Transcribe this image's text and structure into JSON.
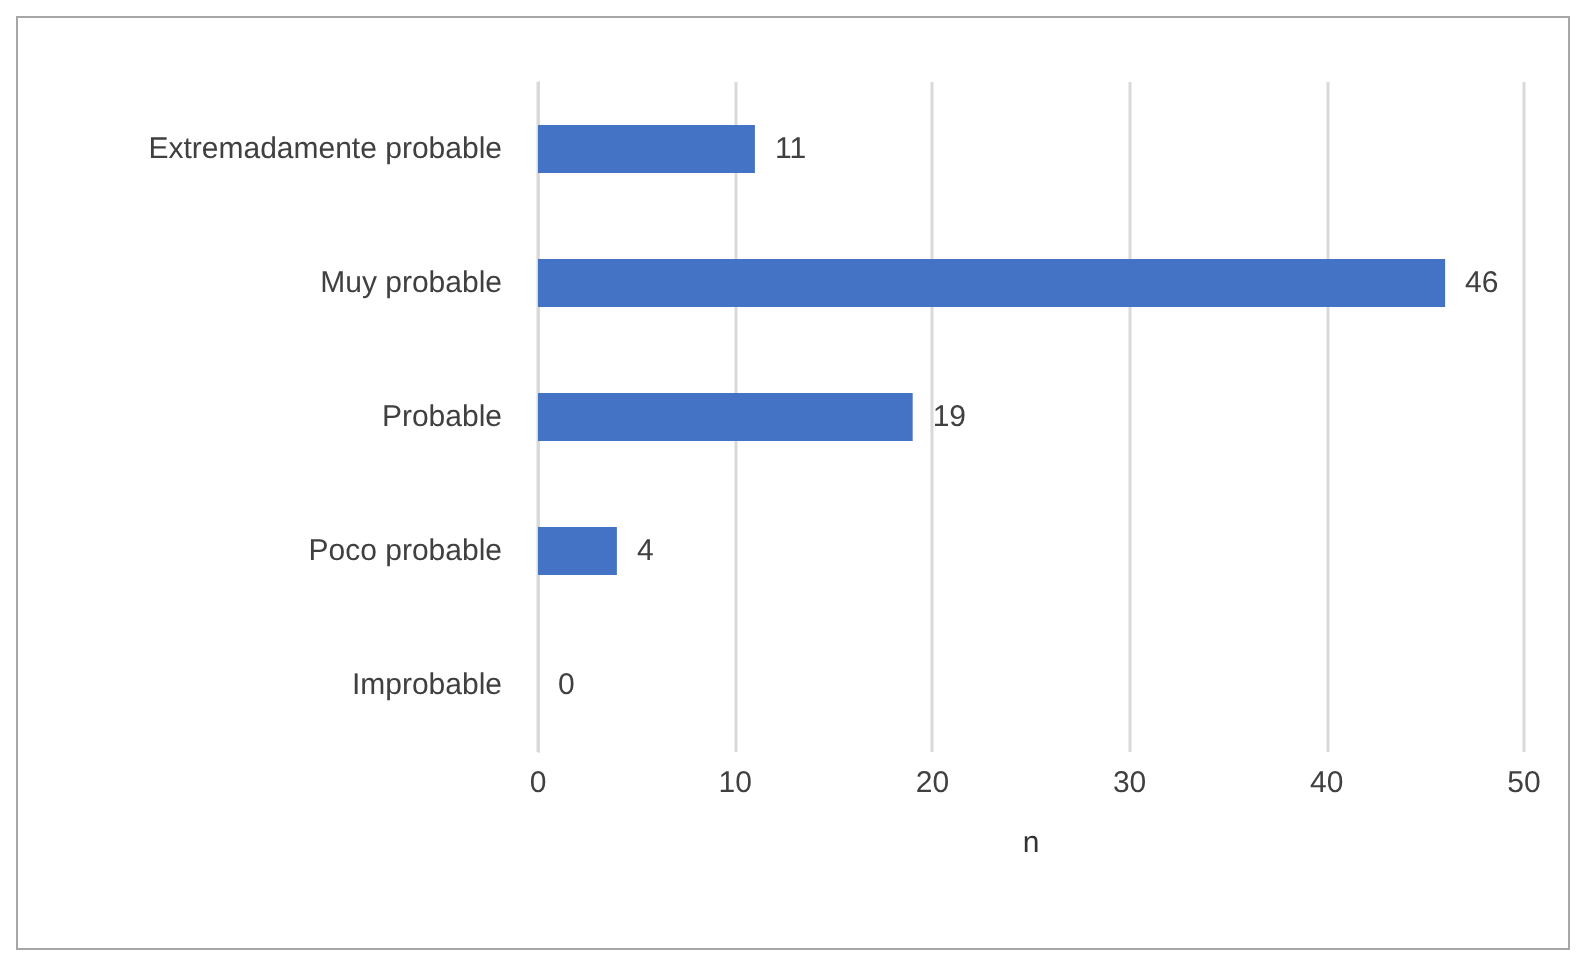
{
  "chart_data": {
    "type": "bar",
    "orientation": "horizontal",
    "categories": [
      "Extremadamente probable",
      "Muy probable",
      "Probable",
      "Poco probable",
      "Improbable"
    ],
    "values": [
      11,
      46,
      19,
      4,
      0
    ],
    "color": "#4472c4",
    "xlim": [
      0,
      50
    ],
    "xticks": [
      0,
      10,
      20,
      30,
      40,
      50
    ],
    "xlabel": "n",
    "grid": "x",
    "data_labels": true
  }
}
